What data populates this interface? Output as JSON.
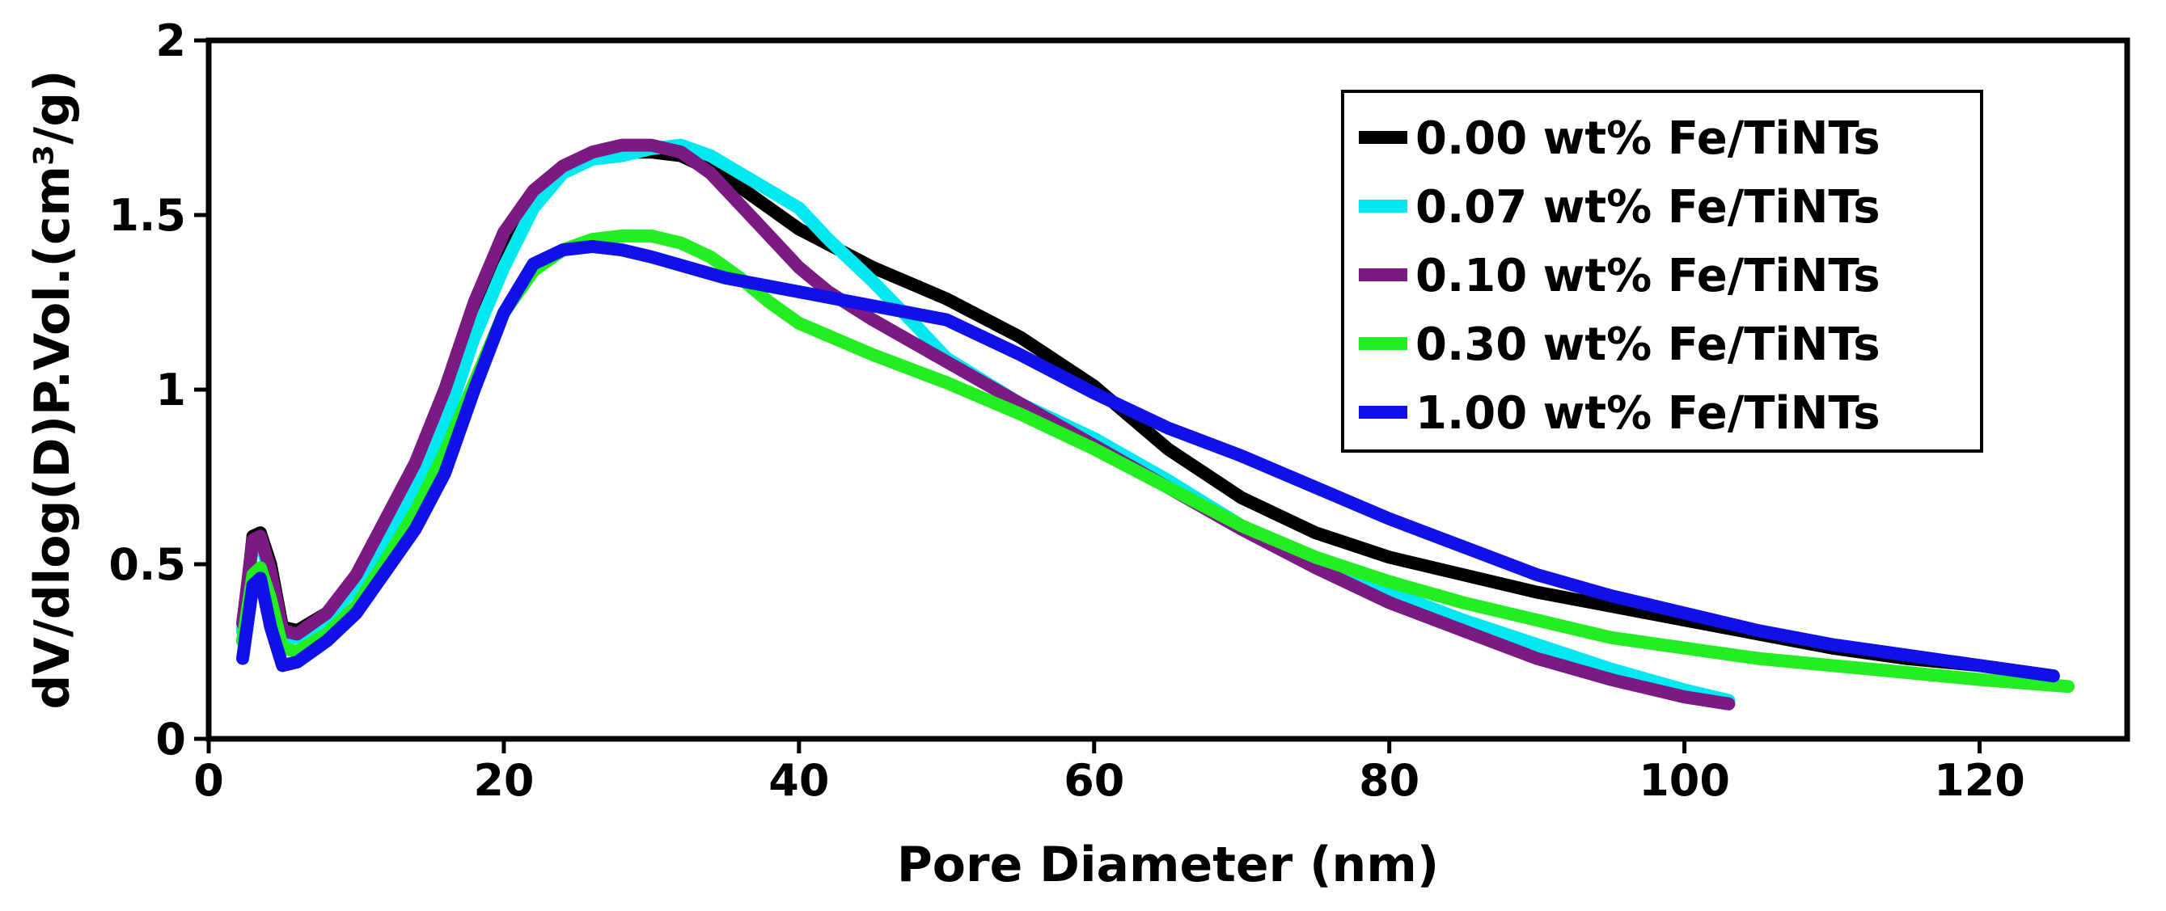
{
  "chart_data": {
    "type": "line",
    "title": "",
    "xlabel": "Pore Diameter (nm)",
    "ylabel": "dV/dlog(D)P.Vol.(cm³/g)",
    "xlim": [
      0,
      130
    ],
    "ylim": [
      0,
      2
    ],
    "xticks": [
      0,
      20,
      40,
      60,
      80,
      100,
      120
    ],
    "yticks": [
      0,
      0.5,
      1,
      1.5,
      2
    ],
    "xtick_labels": [
      "0",
      "20",
      "40",
      "60",
      "80",
      "100",
      "120"
    ],
    "ytick_labels": [
      "0",
      "0.5",
      "1",
      "1.5",
      "2"
    ],
    "legend_position": "top-right",
    "series": [
      {
        "name": "0.00 wt% Fe/TiNTs",
        "color": "#000000",
        "x": [
          2.3,
          3.0,
          3.5,
          4.2,
          5.0,
          6.0,
          8,
          10,
          12,
          14,
          16,
          18,
          20,
          22,
          24,
          26,
          28,
          30,
          32,
          35,
          38,
          40,
          45,
          50,
          55,
          60,
          65,
          70,
          75,
          80,
          85,
          90,
          95,
          100,
          105,
          110,
          115,
          120,
          125
        ],
        "y": [
          0.31,
          0.58,
          0.59,
          0.5,
          0.32,
          0.31,
          0.36,
          0.46,
          0.61,
          0.76,
          0.97,
          1.2,
          1.42,
          1.55,
          1.63,
          1.66,
          1.68,
          1.68,
          1.67,
          1.61,
          1.52,
          1.46,
          1.35,
          1.26,
          1.15,
          1.01,
          0.83,
          0.69,
          0.59,
          0.52,
          0.47,
          0.42,
          0.38,
          0.34,
          0.3,
          0.26,
          0.23,
          0.21,
          0.18
        ]
      },
      {
        "name": "0.07 wt% Fe/TiNTs",
        "color": "#00e8f0",
        "x": [
          2.3,
          3.0,
          3.5,
          4.2,
          5.0,
          6.0,
          8,
          10,
          12,
          14,
          16,
          18,
          20,
          22,
          24,
          26,
          28,
          30,
          32,
          34,
          36,
          38,
          40,
          42,
          45,
          48,
          50,
          55,
          60,
          65,
          70,
          75,
          80,
          85,
          90,
          95,
          100,
          103
        ],
        "y": [
          0.31,
          0.56,
          0.57,
          0.46,
          0.29,
          0.29,
          0.34,
          0.44,
          0.58,
          0.72,
          0.9,
          1.15,
          1.35,
          1.52,
          1.62,
          1.66,
          1.67,
          1.69,
          1.7,
          1.67,
          1.62,
          1.57,
          1.52,
          1.43,
          1.31,
          1.18,
          1.09,
          0.96,
          0.86,
          0.74,
          0.61,
          0.51,
          0.42,
          0.34,
          0.27,
          0.2,
          0.14,
          0.11
        ]
      },
      {
        "name": "0.10 wt% Fe/TiNTs",
        "color": "#7a1a82",
        "x": [
          2.3,
          3.0,
          3.5,
          4.2,
          5.0,
          6.0,
          8,
          10,
          12,
          14,
          16,
          18,
          20,
          22,
          24,
          26,
          28,
          30,
          32,
          34,
          36,
          38,
          40,
          42,
          45,
          50,
          55,
          60,
          65,
          70,
          75,
          80,
          85,
          90,
          95,
          100,
          103
        ],
        "y": [
          0.33,
          0.57,
          0.58,
          0.48,
          0.31,
          0.3,
          0.36,
          0.47,
          0.63,
          0.79,
          1.0,
          1.25,
          1.45,
          1.57,
          1.64,
          1.68,
          1.7,
          1.7,
          1.68,
          1.62,
          1.53,
          1.44,
          1.35,
          1.28,
          1.2,
          1.08,
          0.96,
          0.84,
          0.72,
          0.6,
          0.49,
          0.39,
          0.31,
          0.23,
          0.17,
          0.12,
          0.1
        ]
      },
      {
        "name": "0.30 wt% Fe/TiNTs",
        "color": "#22ee22",
        "x": [
          2.3,
          3.0,
          3.5,
          4.2,
          5.0,
          6.0,
          8,
          10,
          12,
          14,
          16,
          18,
          20,
          22,
          24,
          26,
          28,
          30,
          32,
          34,
          36,
          38,
          40,
          45,
          50,
          55,
          60,
          65,
          70,
          75,
          80,
          85,
          90,
          95,
          100,
          105,
          110,
          115,
          120,
          126
        ],
        "y": [
          0.28,
          0.47,
          0.49,
          0.4,
          0.26,
          0.25,
          0.3,
          0.38,
          0.51,
          0.65,
          0.82,
          1.02,
          1.22,
          1.34,
          1.4,
          1.43,
          1.44,
          1.44,
          1.42,
          1.38,
          1.32,
          1.25,
          1.19,
          1.1,
          1.02,
          0.93,
          0.83,
          0.72,
          0.61,
          0.52,
          0.45,
          0.39,
          0.34,
          0.29,
          0.26,
          0.23,
          0.21,
          0.19,
          0.17,
          0.15
        ]
      },
      {
        "name": "1.00 wt% Fe/TiNTs",
        "color": "#1010e8",
        "x": [
          2.3,
          3.0,
          3.5,
          4.2,
          5.0,
          6.0,
          8,
          10,
          12,
          14,
          16,
          18,
          20,
          22,
          24,
          26,
          28,
          30,
          35,
          40,
          45,
          50,
          55,
          60,
          65,
          70,
          75,
          80,
          85,
          90,
          95,
          100,
          105,
          110,
          115,
          120,
          125
        ],
        "y": [
          0.23,
          0.44,
          0.46,
          0.32,
          0.21,
          0.22,
          0.28,
          0.36,
          0.48,
          0.6,
          0.76,
          1.0,
          1.22,
          1.36,
          1.4,
          1.41,
          1.4,
          1.38,
          1.32,
          1.28,
          1.24,
          1.2,
          1.1,
          0.99,
          0.89,
          0.81,
          0.72,
          0.63,
          0.55,
          0.47,
          0.41,
          0.36,
          0.31,
          0.27,
          0.24,
          0.21,
          0.18
        ]
      }
    ]
  }
}
